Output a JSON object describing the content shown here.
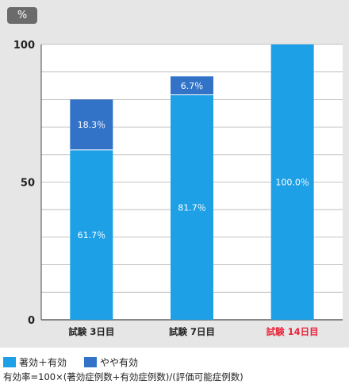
{
  "unit_badge": "%",
  "chart_data": {
    "type": "bar",
    "stacked": true,
    "categories": [
      "試験 3日目",
      "試験 7日目",
      "試験 14日目"
    ],
    "category_colors": [
      "#222222",
      "#222222",
      "#e8233a"
    ],
    "series": [
      {
        "name": "著効＋有効",
        "color": "#1ea0e6",
        "values": [
          61.7,
          81.7,
          100.0
        ],
        "labels": [
          "61.7％",
          "81.7％",
          "100.0％"
        ]
      },
      {
        "name": "やや有効",
        "color": "#3273c8",
        "values": [
          18.3,
          6.7,
          0
        ],
        "labels": [
          "18.3％",
          "6.7％",
          ""
        ]
      }
    ],
    "yticks": [
      "0",
      "50",
      "100"
    ],
    "ylim": [
      0,
      100
    ],
    "grid": true,
    "legend_position": "bottom-left"
  },
  "footnote": "有効率=100×(著効症例数+有効症例数)/(評価可能症例数)"
}
